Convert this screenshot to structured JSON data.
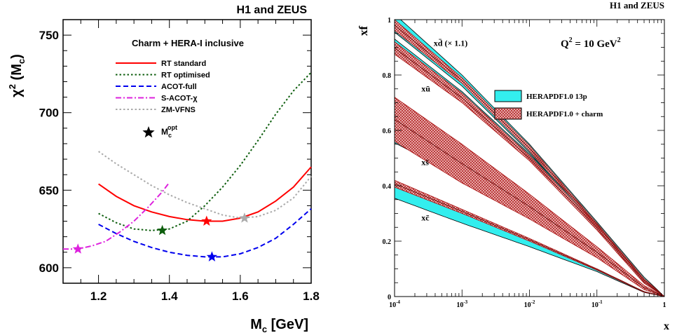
{
  "chart_data": [
    {
      "type": "line",
      "header": "H1 and ZEUS",
      "legend_title": "Charm + HERA-I inclusive",
      "xlabel": "M",
      "xlabel_sub": "c",
      "xlabel_unit": " [GeV]",
      "ylabel": "χ",
      "ylabel_sup": "2",
      "ylabel_rest": " (M",
      "ylabel_sub": "c",
      "ylabel_close": ")",
      "xlim": [
        1.1,
        1.8
      ],
      "ylim": [
        590,
        760
      ],
      "xticks": [
        1.2,
        1.4,
        1.6,
        1.8
      ],
      "xtick_labels": [
        "1.2",
        "1.4",
        "1.6",
        "1.8"
      ],
      "yticks": [
        600,
        650,
        700,
        750
      ],
      "ytick_labels": [
        "600",
        "650",
        "700",
        "750"
      ],
      "legend_placement": "top-right",
      "star_legend": {
        "label": "M",
        "sub": "c",
        "sup": "opt"
      },
      "series": [
        {
          "name": "RT standard",
          "color": "#ff0000",
          "dash": "solid",
          "x": [
            1.2,
            1.25,
            1.3,
            1.35,
            1.4,
            1.45,
            1.5,
            1.55,
            1.6,
            1.65,
            1.7,
            1.75,
            1.8
          ],
          "y": [
            654,
            646,
            640,
            636,
            633,
            631,
            630,
            630,
            632,
            636,
            643,
            652,
            665
          ],
          "star": [
            1.505,
            630
          ]
        },
        {
          "name": "RT optimised",
          "color": "#0d5e0d",
          "dash": "dot",
          "x": [
            1.2,
            1.25,
            1.3,
            1.35,
            1.4,
            1.45,
            1.5,
            1.55,
            1.6,
            1.65,
            1.7,
            1.75,
            1.8
          ],
          "y": [
            635,
            629,
            625,
            624,
            625,
            630,
            640,
            652,
            666,
            682,
            699,
            714,
            726
          ],
          "star": [
            1.38,
            624
          ]
        },
        {
          "name": "ACOT-full",
          "color": "#0000ee",
          "dash": "dash",
          "x": [
            1.2,
            1.25,
            1.3,
            1.35,
            1.4,
            1.45,
            1.5,
            1.55,
            1.6,
            1.65,
            1.7,
            1.75,
            1.8
          ],
          "y": [
            628,
            622,
            617,
            613,
            610,
            608,
            607,
            607,
            609,
            613,
            619,
            628,
            638
          ],
          "star": [
            1.52,
            607
          ]
        },
        {
          "name": "S-ACOT-χ",
          "color": "#dd22dd",
          "dash": "dashdot",
          "x": [
            1.1,
            1.14,
            1.18,
            1.22,
            1.26,
            1.3,
            1.34,
            1.38,
            1.4
          ],
          "y": [
            612,
            612,
            614,
            617,
            623,
            630,
            639,
            649,
            655
          ],
          "star": [
            1.142,
            612
          ]
        },
        {
          "name": "ZM-VFNS",
          "color": "#aaaaaa",
          "dash": "dot",
          "x": [
            1.2,
            1.25,
            1.3,
            1.35,
            1.4,
            1.45,
            1.5,
            1.55,
            1.6,
            1.65,
            1.7,
            1.75,
            1.8
          ],
          "y": [
            675,
            667,
            660,
            653,
            647,
            642,
            638,
            634,
            632,
            633,
            637,
            645,
            659
          ],
          "star": [
            1.612,
            632
          ]
        }
      ]
    },
    {
      "type": "area",
      "header": "H1 and ZEUS",
      "xlabel": "x",
      "ylabel": "xf",
      "xscale": "log",
      "xlim": [
        0.0001,
        1
      ],
      "ylim": [
        0,
        1
      ],
      "xtick_labels": [
        {
          "base": "10",
          "exp": "-4",
          "v": 0.0001
        },
        {
          "base": "10",
          "exp": "-3",
          "v": 0.001
        },
        {
          "base": "10",
          "exp": "-2",
          "v": 0.01
        },
        {
          "base": "10",
          "exp": "-1",
          "v": 0.1
        },
        {
          "base": "1",
          "exp": "",
          "v": 1
        }
      ],
      "yticks": [
        0,
        0.2,
        0.4,
        0.6,
        0.8,
        1
      ],
      "ytick_labels": [
        "0",
        "0.2",
        "0.4",
        "0.6",
        "0.8",
        "1"
      ],
      "q2_label": {
        "text": "Q",
        "sup": "2",
        "rest": " = 10 GeV",
        "sup2": "2"
      },
      "legend_placement": "center-right",
      "legend": [
        {
          "label": "HERAPDF1.0 13p",
          "color": "#33eeee"
        },
        {
          "label": "HERAPDF1.0 + charm",
          "color": "#cc4444"
        }
      ],
      "bands": [
        {
          "label": "xd̄ (× 1.1)",
          "lbl_x": 0.00038,
          "lbl_y": 0.905,
          "x": [
            0.0001,
            0.001,
            0.01,
            0.1,
            0.5,
            1
          ],
          "cyan_lo": [
            0.955,
            0.76,
            0.52,
            0.25,
            0.05,
            0.0
          ],
          "cyan_hi": [
            1.02,
            0.8,
            0.55,
            0.27,
            0.07,
            0.0
          ],
          "red_lo": [
            0.96,
            0.77,
            0.525,
            0.255,
            0.055,
            0.0
          ],
          "red_hi": [
            1.0,
            0.79,
            0.545,
            0.265,
            0.065,
            0.0
          ]
        },
        {
          "label": "xū",
          "lbl_x": 0.00025,
          "lbl_y": 0.74,
          "x": [
            0.0001,
            0.001,
            0.01,
            0.1,
            0.5,
            1
          ],
          "cyan_lo": [
            0.885,
            0.71,
            0.495,
            0.245,
            0.05,
            0.0
          ],
          "cyan_hi": [
            0.93,
            0.74,
            0.515,
            0.26,
            0.06,
            0.0
          ],
          "red_lo": [
            0.875,
            0.7,
            0.49,
            0.24,
            0.048,
            0.0
          ],
          "red_hi": [
            0.92,
            0.735,
            0.51,
            0.255,
            0.058,
            0.0
          ]
        },
        {
          "label": "xs̄",
          "lbl_x": 0.00025,
          "lbl_y": 0.475,
          "x": [
            0.0001,
            0.001,
            0.01,
            0.1,
            0.5,
            1
          ],
          "cyan_lo": [
            0.555,
            0.43,
            0.3,
            0.15,
            0.03,
            0.0
          ],
          "cyan_hi": [
            0.565,
            0.44,
            0.31,
            0.155,
            0.033,
            0.0
          ],
          "red_lo": [
            0.56,
            0.41,
            0.28,
            0.14,
            0.025,
            0.0
          ],
          "red_hi": [
            0.72,
            0.55,
            0.37,
            0.18,
            0.04,
            0.0
          ]
        },
        {
          "label": "xc̄",
          "lbl_x": 0.00025,
          "lbl_y": 0.275,
          "x": [
            0.0001,
            0.001,
            0.01,
            0.1,
            0.5,
            1
          ],
          "cyan_lo": [
            0.355,
            0.265,
            0.18,
            0.09,
            0.015,
            0.0
          ],
          "cyan_hi": [
            0.41,
            0.305,
            0.205,
            0.1,
            0.018,
            0.0
          ],
          "red_lo": [
            0.395,
            0.3,
            0.2,
            0.095,
            0.016,
            0.0
          ],
          "red_hi": [
            0.42,
            0.315,
            0.21,
            0.1,
            0.018,
            0.0
          ]
        }
      ]
    }
  ]
}
